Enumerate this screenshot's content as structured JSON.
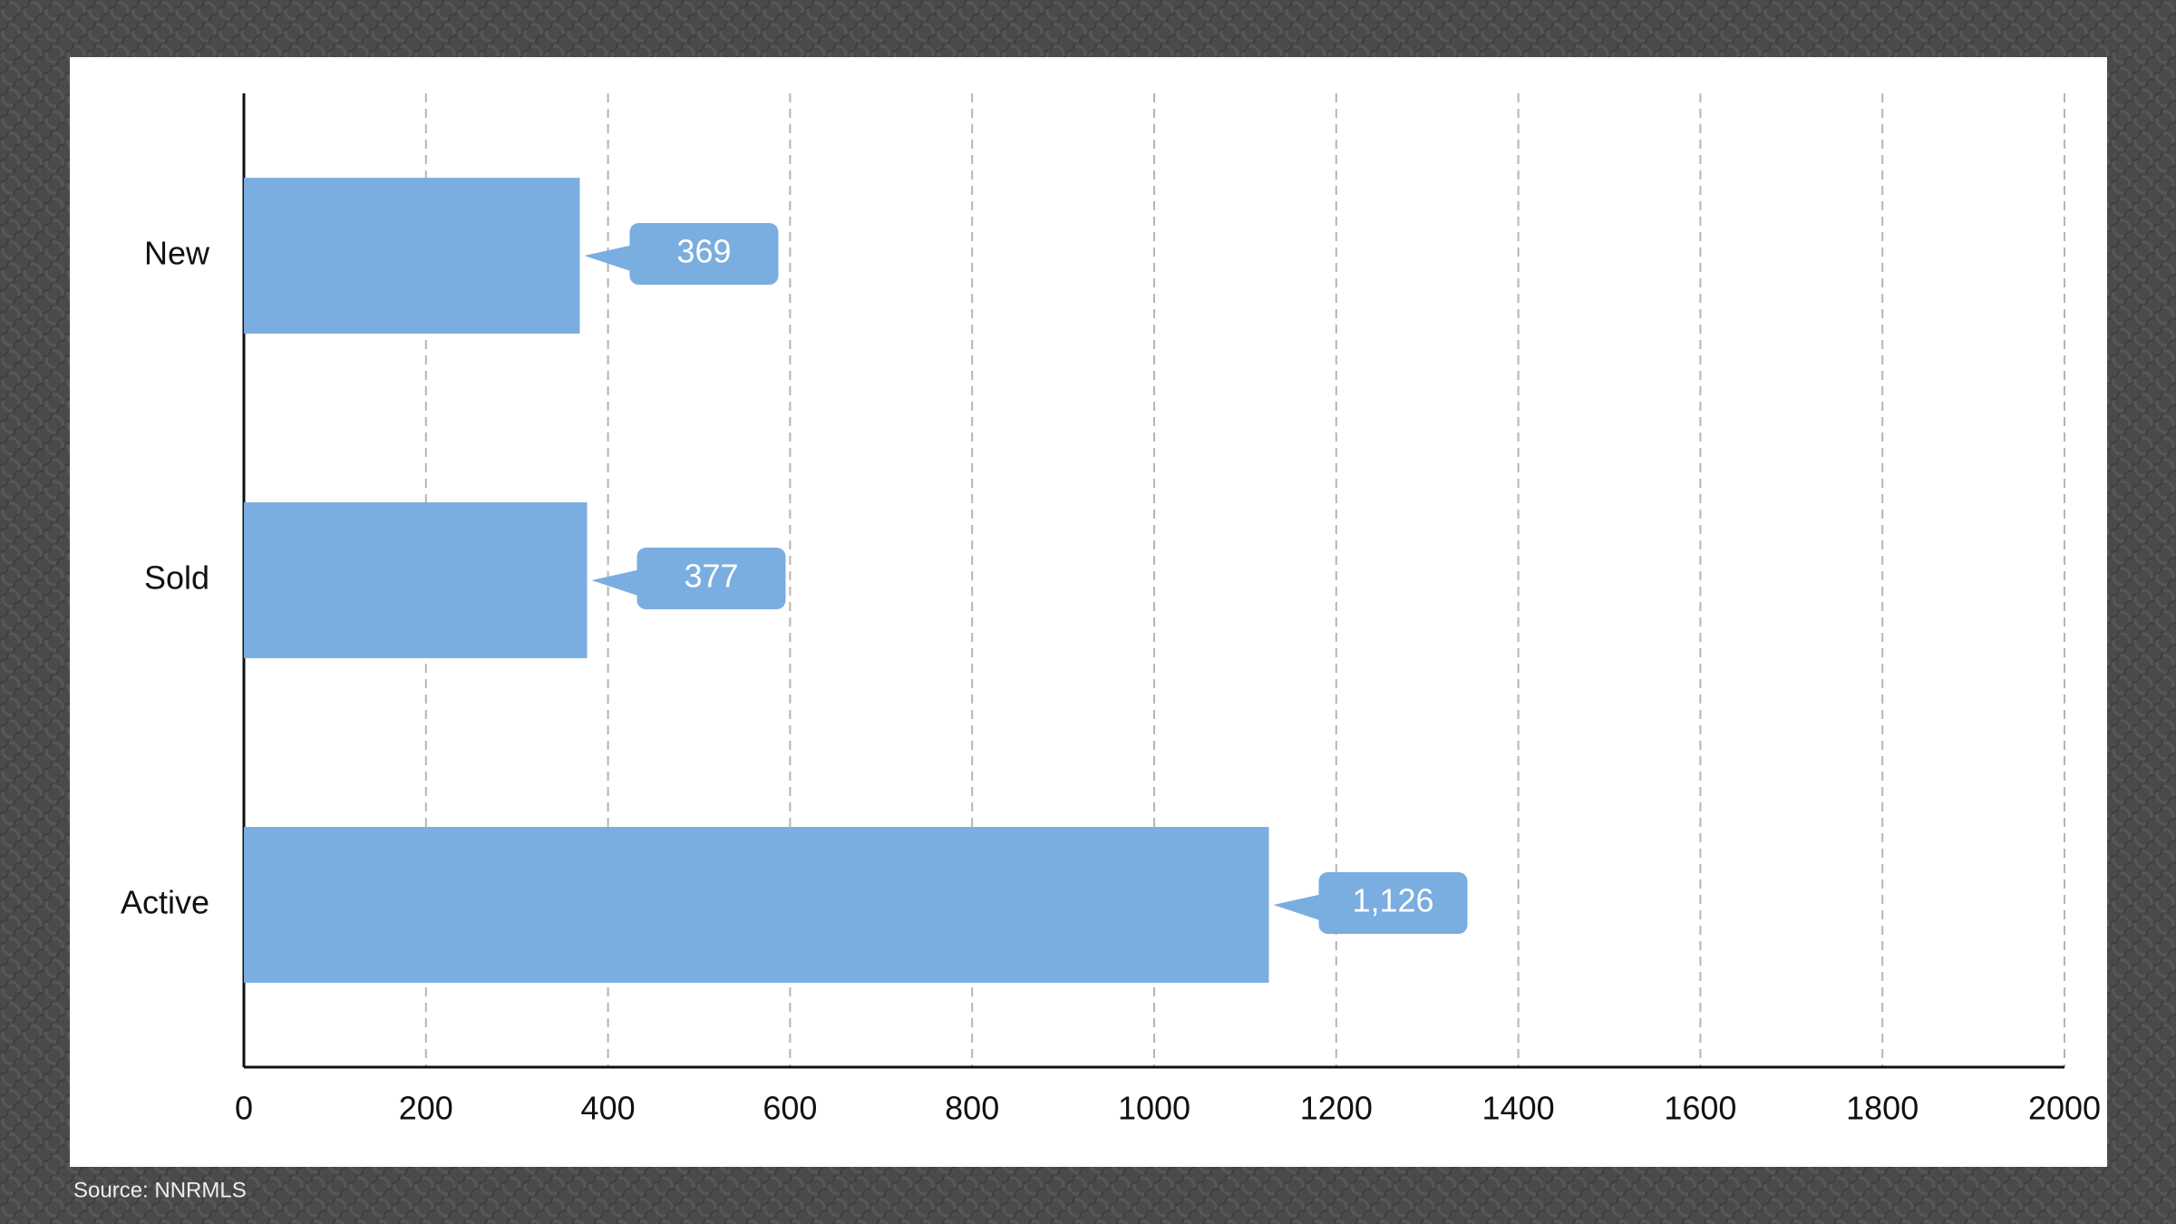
{
  "chart_data": {
    "type": "bar",
    "orientation": "horizontal",
    "categories": [
      "New",
      "Sold",
      "Active"
    ],
    "values": [
      369,
      377,
      1126
    ],
    "value_labels": [
      "369",
      "377",
      "1,126"
    ],
    "color": "#7aade0",
    "xlim": [
      0,
      2000
    ],
    "xticks": [
      0,
      200,
      400,
      600,
      800,
      1000,
      1200,
      1400,
      1600,
      1800,
      2000
    ],
    "grid": true,
    "source": "Source: NNRMLS"
  }
}
